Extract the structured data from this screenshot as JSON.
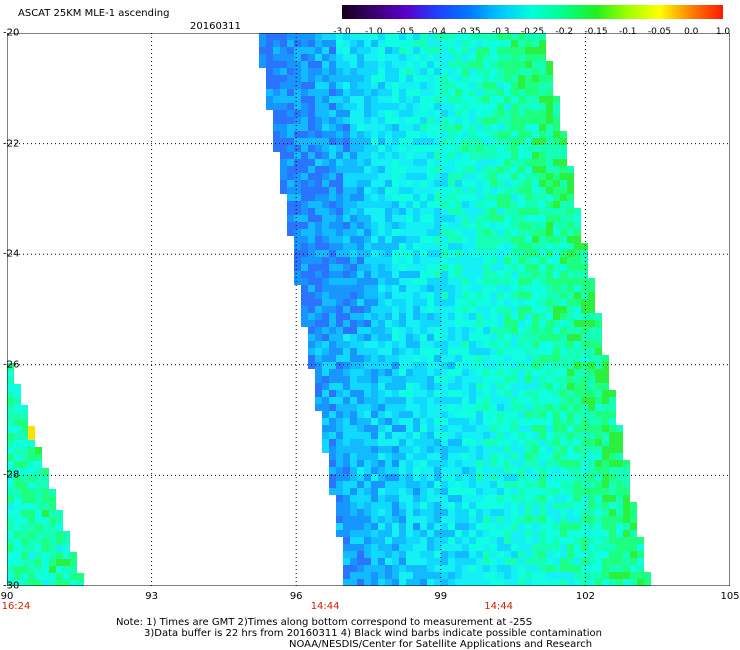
{
  "header": {
    "title": "ASCAT 25KM MLE-1 ascending",
    "date": "20160311"
  },
  "colorbar": {
    "labels": [
      "-3.0",
      "-1.0",
      "-0.5",
      "-0.4",
      "-0.35",
      "-0.3",
      "-0.25",
      "-0.2",
      "-0.15",
      "-0.1",
      "-0.05",
      "0.0",
      "1.0"
    ],
    "colors": [
      "#160018",
      "#3a0070",
      "#5a00c8",
      "#2040ff",
      "#0078ff",
      "#00c8ff",
      "#00ffd8",
      "#00ff88",
      "#20f020",
      "#a0ff00",
      "#ffff00",
      "#ff8000",
      "#ff1800"
    ]
  },
  "axes": {
    "lat_labels": [
      "-20",
      "-22",
      "-24",
      "-26",
      "-28",
      "-30"
    ],
    "lon_labels": [
      "90",
      "93",
      "96",
      "99",
      "102",
      "105"
    ],
    "lat_range": [
      -30,
      -20
    ],
    "lon_range": [
      90,
      105
    ]
  },
  "time_labels": [
    {
      "lon": 90,
      "text": "16:24"
    },
    {
      "lon": 96.6,
      "text": "14:44"
    },
    {
      "lon": 100.2,
      "text": "14:44"
    }
  ],
  "notes": [
    "Note: 1) Times are GMT 2)Times along bottom correspond to measurement at -25S",
    "3)Data buffer is 22 hrs from 20160311 4) Black wind barbs indicate possible contamination",
    "NOAA/NESDIS/Center for Satellite Applications and Research"
  ]
}
